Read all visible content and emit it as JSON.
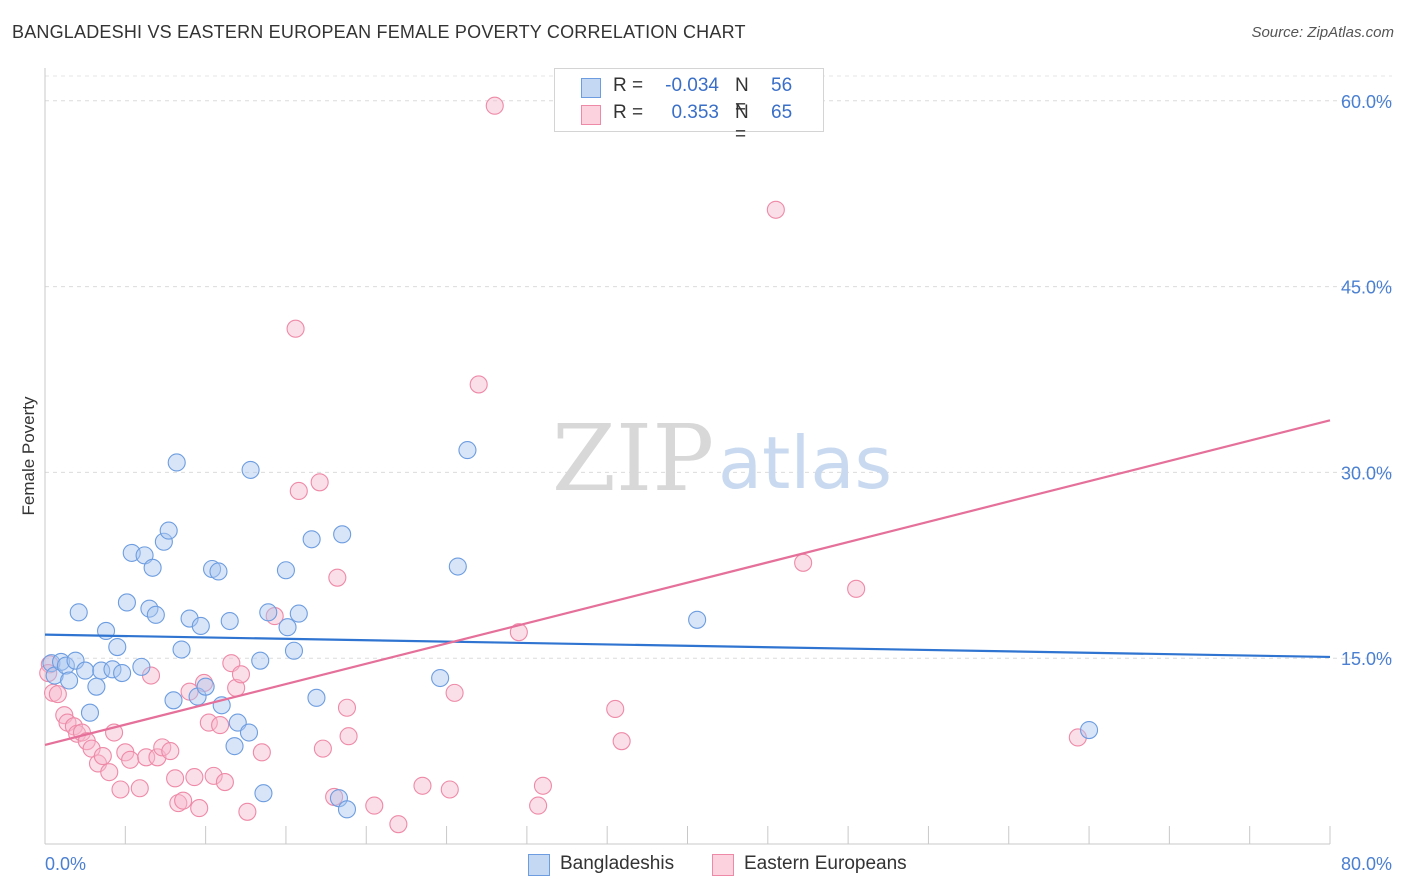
{
  "title": "BANGLADESHI VS EASTERN EUROPEAN FEMALE POVERTY CORRELATION CHART",
  "source": "Source: ZipAtlas.com",
  "watermark": {
    "zip": "ZIP",
    "atlas": "atlas"
  },
  "legend": {
    "r_label": "R =",
    "n_label": "N =",
    "rows": [
      {
        "r": "-0.034",
        "n": "56",
        "color": "#a9c6ef"
      },
      {
        "r": "0.353",
        "n": "65",
        "color": "#f7b8cb"
      }
    ]
  },
  "bottom_legend": [
    "Bangladeshis",
    "Eastern Europeans"
  ],
  "chart_data": {
    "type": "scatter",
    "title": "BANGLADESHI VS EASTERN EUROPEAN FEMALE POVERTY CORRELATION CHART",
    "xlabel": "",
    "ylabel": "Female Poverty",
    "xlim": [
      0,
      80
    ],
    "ylim": [
      0,
      62
    ],
    "x_tick_labels": [
      "0.0%",
      "80.0%"
    ],
    "y_ticks": [
      15,
      30,
      45,
      60
    ],
    "y_tick_labels": [
      "15.0%",
      "30.0%",
      "45.0%",
      "60.0%"
    ],
    "grid": true,
    "legend_position": "top-center",
    "series": [
      {
        "name": "Bangladeshis",
        "color": "#a9c6ef",
        "edge": "#6d9de0",
        "line_color": "#2f74d0",
        "trend": {
          "x": [
            0,
            80
          ],
          "y": [
            16.9,
            15.1
          ]
        },
        "points": [
          [
            0.4,
            14.6
          ],
          [
            0.6,
            13.6
          ],
          [
            1.0,
            14.7
          ],
          [
            1.3,
            14.4
          ],
          [
            1.5,
            13.2
          ],
          [
            1.9,
            14.8
          ],
          [
            2.1,
            18.7
          ],
          [
            2.5,
            14.0
          ],
          [
            2.8,
            10.6
          ],
          [
            3.2,
            12.7
          ],
          [
            3.5,
            14.0
          ],
          [
            3.8,
            17.2
          ],
          [
            4.2,
            14.1
          ],
          [
            4.5,
            15.9
          ],
          [
            4.8,
            13.8
          ],
          [
            5.1,
            19.5
          ],
          [
            5.4,
            23.5
          ],
          [
            6.0,
            14.3
          ],
          [
            6.2,
            23.3
          ],
          [
            6.5,
            19.0
          ],
          [
            6.7,
            22.3
          ],
          [
            6.9,
            18.5
          ],
          [
            7.4,
            24.4
          ],
          [
            7.7,
            25.3
          ],
          [
            8.0,
            11.6
          ],
          [
            8.2,
            30.8
          ],
          [
            8.5,
            15.7
          ],
          [
            9.0,
            18.2
          ],
          [
            9.5,
            11.9
          ],
          [
            9.7,
            17.6
          ],
          [
            10.0,
            12.7
          ],
          [
            10.4,
            22.2
          ],
          [
            10.8,
            22.0
          ],
          [
            11.0,
            11.2
          ],
          [
            11.5,
            18.0
          ],
          [
            11.8,
            7.9
          ],
          [
            12.0,
            9.8
          ],
          [
            12.7,
            9.0
          ],
          [
            12.8,
            30.2
          ],
          [
            13.4,
            14.8
          ],
          [
            13.6,
            4.1
          ],
          [
            13.9,
            18.7
          ],
          [
            15.0,
            22.1
          ],
          [
            15.1,
            17.5
          ],
          [
            15.5,
            15.6
          ],
          [
            15.8,
            18.6
          ],
          [
            16.6,
            24.6
          ],
          [
            16.9,
            11.8
          ],
          [
            18.3,
            3.7
          ],
          [
            18.5,
            25.0
          ],
          [
            18.8,
            2.8
          ],
          [
            24.6,
            13.4
          ],
          [
            25.7,
            22.4
          ],
          [
            26.3,
            31.8
          ],
          [
            40.6,
            18.1
          ],
          [
            65.0,
            9.2
          ]
        ]
      },
      {
        "name": "Eastern Europeans",
        "color": "#f7b8cb",
        "edge": "#ee8aa8",
        "line_color": "#e5709a",
        "trend": {
          "x": [
            0,
            80
          ],
          "y": [
            8.0,
            34.2
          ]
        },
        "points": [
          [
            0.3,
            14.5
          ],
          [
            0.5,
            12.2
          ],
          [
            0.8,
            12.1
          ],
          [
            1.2,
            10.4
          ],
          [
            1.4,
            9.8
          ],
          [
            1.8,
            9.5
          ],
          [
            2.0,
            8.9
          ],
          [
            2.3,
            9.0
          ],
          [
            2.6,
            8.3
          ],
          [
            2.9,
            7.7
          ],
          [
            3.3,
            6.5
          ],
          [
            3.6,
            7.1
          ],
          [
            4.0,
            5.8
          ],
          [
            4.3,
            9.0
          ],
          [
            4.7,
            4.4
          ],
          [
            5.0,
            7.4
          ],
          [
            5.3,
            6.8
          ],
          [
            5.9,
            4.5
          ],
          [
            6.3,
            7.0
          ],
          [
            6.6,
            13.6
          ],
          [
            7.0,
            7.0
          ],
          [
            7.3,
            7.8
          ],
          [
            7.8,
            7.5
          ],
          [
            8.1,
            5.3
          ],
          [
            8.3,
            3.3
          ],
          [
            8.6,
            3.5
          ],
          [
            9.0,
            12.3
          ],
          [
            9.3,
            5.4
          ],
          [
            9.6,
            2.9
          ],
          [
            9.9,
            13.0
          ],
          [
            10.2,
            9.8
          ],
          [
            10.5,
            5.5
          ],
          [
            10.9,
            9.6
          ],
          [
            11.2,
            5.0
          ],
          [
            11.6,
            14.6
          ],
          [
            11.9,
            12.6
          ],
          [
            12.2,
            13.7
          ],
          [
            12.6,
            2.6
          ],
          [
            13.5,
            7.4
          ],
          [
            14.3,
            18.4
          ],
          [
            15.6,
            41.6
          ],
          [
            15.8,
            28.5
          ],
          [
            17.1,
            29.2
          ],
          [
            17.3,
            7.7
          ],
          [
            18.0,
            3.8
          ],
          [
            18.2,
            21.5
          ],
          [
            18.8,
            11.0
          ],
          [
            18.9,
            8.7
          ],
          [
            20.5,
            3.1
          ],
          [
            22.0,
            1.6
          ],
          [
            23.5,
            4.7
          ],
          [
            25.2,
            4.4
          ],
          [
            25.5,
            12.2
          ],
          [
            27.0,
            37.1
          ],
          [
            28.0,
            59.6
          ],
          [
            29.5,
            17.1
          ],
          [
            30.7,
            3.1
          ],
          [
            31.0,
            4.7
          ],
          [
            35.5,
            10.9
          ],
          [
            35.9,
            8.3
          ],
          [
            45.5,
            51.2
          ],
          [
            47.2,
            22.7
          ],
          [
            50.5,
            20.6
          ],
          [
            64.3,
            8.6
          ],
          [
            0.2,
            13.8
          ]
        ]
      }
    ]
  }
}
